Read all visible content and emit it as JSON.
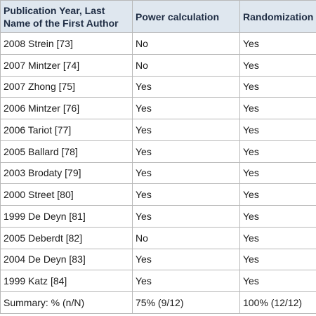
{
  "table": {
    "headers": [
      "Publication Year, Last Name of the First Author",
      "Power calculation",
      "Randomization"
    ],
    "rows": [
      [
        "2008 Strein [73]",
        "No",
        "Yes"
      ],
      [
        "2007 Mintzer [74]",
        "No",
        "Yes"
      ],
      [
        "2007 Zhong [75]",
        "Yes",
        "Yes"
      ],
      [
        "2006 Mintzer [76]",
        "Yes",
        "Yes"
      ],
      [
        "2006 Tariot [77]",
        "Yes",
        "Yes"
      ],
      [
        "2005 Ballard [78]",
        "Yes",
        "Yes"
      ],
      [
        "2003 Brodaty [79]",
        "Yes",
        "Yes"
      ],
      [
        "2000 Street [80]",
        "Yes",
        "Yes"
      ],
      [
        "1999 De Deyn [81]",
        "Yes",
        "Yes"
      ],
      [
        "2005 Deberdt [82]",
        "No",
        "Yes"
      ],
      [
        "2004 De Deyn [83]",
        "Yes",
        "Yes"
      ],
      [
        "1999 Katz [84]",
        "Yes",
        "Yes"
      ]
    ],
    "summary": [
      "Summary: % (n/N)",
      "75% (9/12)",
      "100% (12/12)"
    ]
  },
  "colors": {
    "header_bg": "#dfe7ef",
    "header_text": "#1f2d44",
    "border": "#b8b8b8"
  }
}
